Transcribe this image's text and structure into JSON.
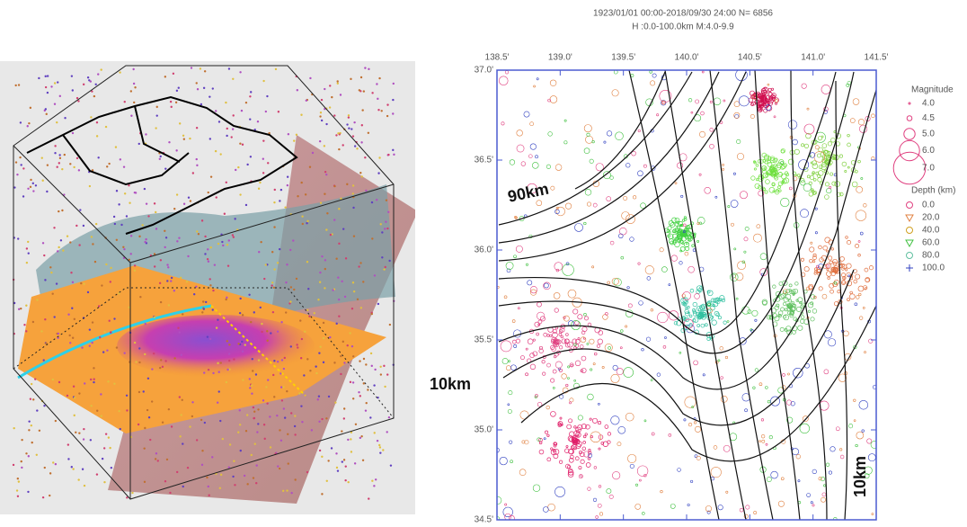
{
  "header": {
    "line1": "1923/01/01 00:00-2018/09/30 24:00   N=  6856",
    "line2": "H :0.0-100.0km  M:4.0-9.9"
  },
  "map": {
    "lon_labels": [
      "138.5'",
      "139.0'",
      "139.5'",
      "140.0'",
      "140.5'",
      "141.0'",
      "141.5'"
    ],
    "lat_labels": [
      "37.0'",
      "36.5'",
      "36.0'",
      "35.5'",
      "35.0'",
      "34.5'"
    ],
    "annotations": [
      "90km",
      "10km",
      "10km"
    ]
  },
  "legend": {
    "magnitude_title": "Magnitude",
    "magnitudes": [
      "4.0",
      "4.5",
      "5.0",
      "6.0",
      "7.0"
    ],
    "depth_title": "Depth (km)",
    "depths": [
      "0.0",
      "20.0",
      "40.0",
      "60.0",
      "80.0",
      "100.0"
    ]
  }
}
